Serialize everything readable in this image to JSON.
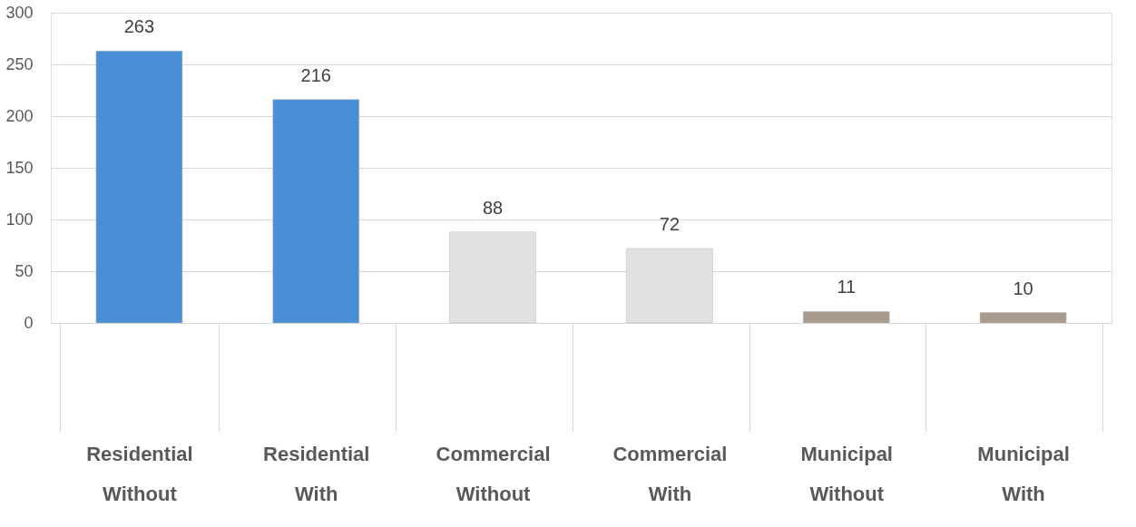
{
  "chart_data": {
    "type": "bar",
    "categories": [
      "Residential Without",
      "Residential With",
      "Commercial Without",
      "Commercial With",
      "Municipal Without",
      "Municipal With"
    ],
    "values": [
      263,
      216,
      88,
      72,
      11,
      10
    ],
    "colors": [
      "#4a8fd6",
      "#4a8fd6",
      "#dfe1e2",
      "#dfe1e2",
      "#a89a8c",
      "#a89a8c"
    ],
    "ylim": [
      0,
      300
    ],
    "yticks": [
      0,
      50,
      100,
      150,
      200,
      250,
      300
    ],
    "grid": "y",
    "data_labels": true
  }
}
